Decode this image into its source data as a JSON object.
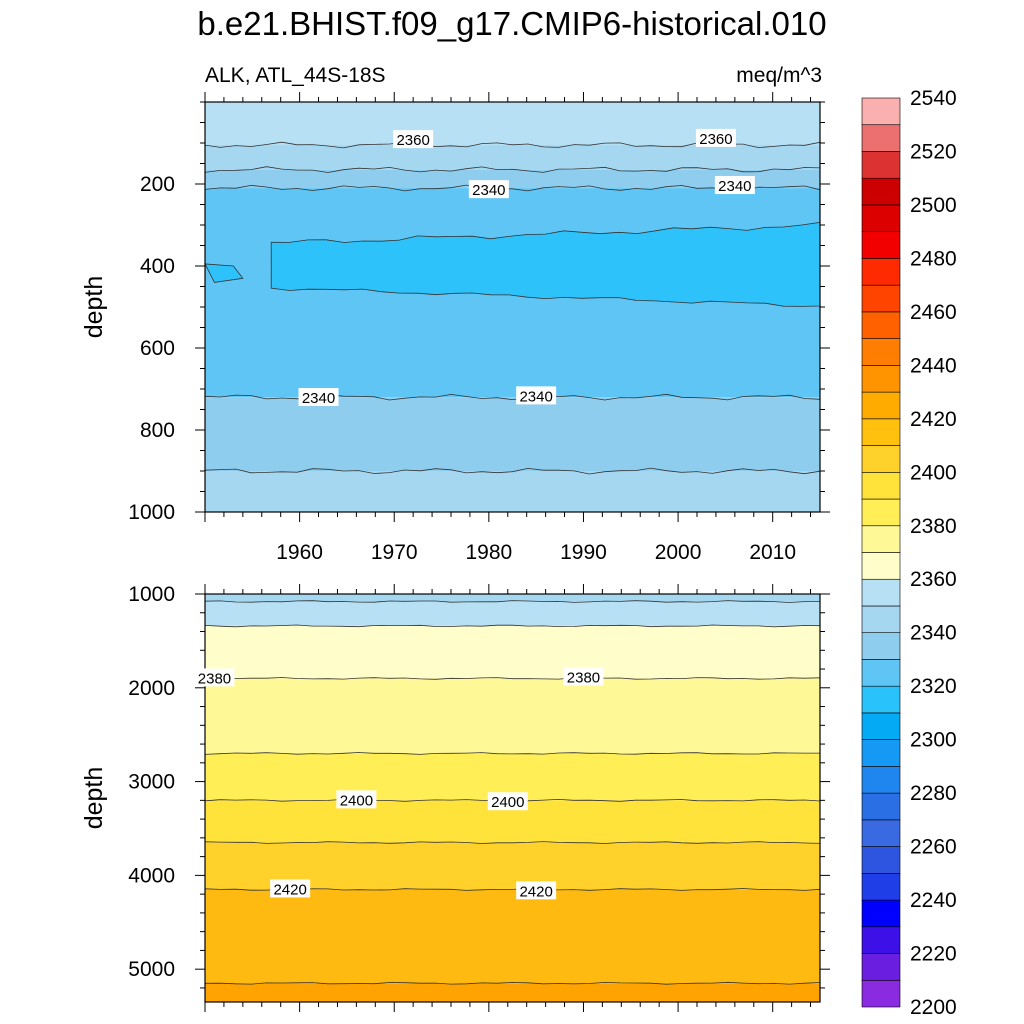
{
  "chart_data": {
    "type": "contour",
    "title": "b.e21.BHIST.f09_g17.CMIP6-historical.010",
    "left_string": "ALK, ATL_44S-18S",
    "right_string": "meq/m^3",
    "x": {
      "label": "",
      "range": [
        1950,
        2015
      ],
      "ticks": [
        1960,
        1970,
        1980,
        1990,
        2000,
        2010
      ]
    },
    "panels": [
      {
        "name": "upper",
        "ylabel": "depth",
        "ylim": [
          0,
          1000
        ],
        "yticks": [
          200,
          400,
          600,
          800,
          1000
        ],
        "bands": [
          {
            "top": 0,
            "bottom": 105,
            "color": "#b8e0f4"
          },
          {
            "top": 105,
            "bottom": 165,
            "color": "#a5d7f1"
          },
          {
            "top": 165,
            "bottom": 210,
            "color": "#8fcdee"
          },
          {
            "top": 210,
            "bottom": 720,
            "color": "#5fc5f5"
          },
          {
            "top": 720,
            "bottom": 900,
            "color": "#8fcdee"
          },
          {
            "top": 900,
            "bottom": 1000,
            "color": "#a5d7f1"
          }
        ],
        "contour_labels": [
          {
            "text": "2360",
            "year": 1972,
            "depth": 93
          },
          {
            "text": "2360",
            "year": 2004,
            "depth": 90
          },
          {
            "text": "2340",
            "year": 1980,
            "depth": 215
          },
          {
            "text": "2340",
            "year": 2006,
            "depth": 205
          },
          {
            "text": "2340",
            "year": 1962,
            "depth": 722
          },
          {
            "text": "2340",
            "year": 1985,
            "depth": 718
          }
        ]
      },
      {
        "name": "lower",
        "ylabel": "depth",
        "ylim": [
          1000,
          5350
        ],
        "yticks": [
          1000,
          2000,
          3000,
          4000,
          5000
        ],
        "bands": [
          {
            "top": 1000,
            "bottom": 1080,
            "color": "#a5d7f1"
          },
          {
            "top": 1080,
            "bottom": 1340,
            "color": "#b8e0f4"
          },
          {
            "top": 1340,
            "bottom": 1900,
            "color": "#fffdca"
          },
          {
            "top": 1900,
            "bottom": 2700,
            "color": "#fff897"
          },
          {
            "top": 2700,
            "bottom": 3200,
            "color": "#ffee55"
          },
          {
            "top": 3200,
            "bottom": 3650,
            "color": "#ffe33a"
          },
          {
            "top": 3650,
            "bottom": 4150,
            "color": "#ffd12a"
          },
          {
            "top": 4150,
            "bottom": 5150,
            "color": "#ffba12"
          },
          {
            "top": 5150,
            "bottom": 5350,
            "color": "#ffa300"
          }
        ],
        "contour_labels": [
          {
            "text": "2380",
            "year": 1951,
            "depth": 1900
          },
          {
            "text": "2380",
            "year": 1990,
            "depth": 1890
          },
          {
            "text": "2400",
            "year": 1966,
            "depth": 3200
          },
          {
            "text": "2400",
            "year": 1982,
            "depth": 3220
          },
          {
            "text": "2420",
            "year": 1959,
            "depth": 4150
          },
          {
            "text": "2420",
            "year": 1985,
            "depth": 4170
          }
        ]
      }
    ],
    "colorbar": {
      "colors": [
        "#8a2be2",
        "#6a1ee0",
        "#3d10e8",
        "#0000ff",
        "#1f3ee8",
        "#2d55e0",
        "#3a6ae2",
        "#2b6fe5",
        "#1f86f0",
        "#149af5",
        "#05aaf5",
        "#29c2fa",
        "#5fc5f5",
        "#8fcdee",
        "#a5d7f1",
        "#b8e0f4",
        "#fffdca",
        "#fff897",
        "#ffee55",
        "#ffe33a",
        "#ffd12a",
        "#ffc10e",
        "#ffab00",
        "#ff9400",
        "#ff7d00",
        "#ff6000",
        "#ff4400",
        "#ff2a00",
        "#f20000",
        "#dd0000",
        "#cc0000",
        "#dc3232",
        "#ec7070",
        "#fbb0b0"
      ],
      "levels": [
        2200,
        2210,
        2220,
        2230,
        2240,
        2250,
        2260,
        2270,
        2280,
        2290,
        2300,
        2310,
        2320,
        2330,
        2340,
        2350,
        2360,
        2370,
        2380,
        2390,
        2400,
        2410,
        2420,
        2430,
        2440,
        2450,
        2460,
        2470,
        2480,
        2490,
        2500,
        2510,
        2520,
        2530,
        2540,
        2550
      ],
      "labels": [
        "2200",
        "2220",
        "2240",
        "2260",
        "2280",
        "2300",
        "2320",
        "2340",
        "2360",
        "2380",
        "2400",
        "2420",
        "2440",
        "2460",
        "2480",
        "2500",
        "2520",
        "2540"
      ]
    }
  }
}
